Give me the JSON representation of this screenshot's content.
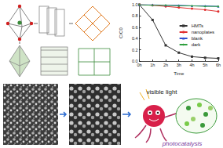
{
  "chart_data": {
    "type": "line",
    "x_label": "Time",
    "y_label": "C/C0",
    "categories": [
      "0h",
      "1h",
      "2h",
      "3h",
      "4h",
      "5h",
      "6h"
    ],
    "series": [
      {
        "name": "HMTs",
        "color": "#333333",
        "marker": "square",
        "values": [
          1.0,
          0.73,
          0.28,
          0.15,
          0.08,
          0.06,
          0.05
        ]
      },
      {
        "name": "nanoplates",
        "color": "#e03030",
        "marker": "circle",
        "values": [
          1.0,
          0.99,
          0.97,
          0.95,
          0.93,
          0.91,
          0.88
        ]
      },
      {
        "name": "blank",
        "color": "#3050d0",
        "marker": "triangle",
        "values": [
          1.0,
          1.0,
          0.99,
          0.99,
          0.98,
          0.98,
          0.97
        ]
      },
      {
        "name": "dark",
        "color": "#30a040",
        "marker": "diamond",
        "values": [
          1.0,
          0.99,
          0.99,
          0.98,
          0.98,
          0.97,
          0.97
        ]
      }
    ],
    "ylim": [
      0,
      1.0
    ],
    "yticks": [
      {
        "value": 0,
        "label": "0.0"
      },
      {
        "value": 0.2,
        "label": "0.2"
      },
      {
        "value": 0.4,
        "label": "0.4"
      },
      {
        "value": 0.6,
        "label": "0.6"
      },
      {
        "value": 0.8,
        "label": "0.8"
      },
      {
        "value": 1.0,
        "label": "1.0"
      }
    ],
    "legend": "upper right",
    "grid": false,
    "annotations": [
      "visible light",
      "photocatalysis"
    ]
  }
}
